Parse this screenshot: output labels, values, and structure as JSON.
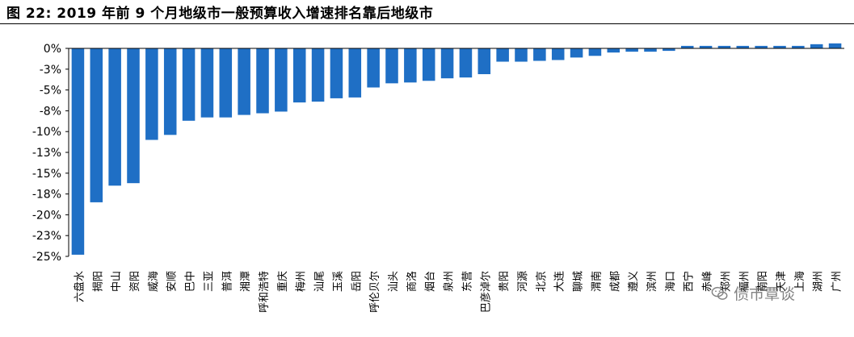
{
  "figure": {
    "title": "图 22:  2019 年前 9 个月地级市一般预算收入增速排名靠后地级市",
    "watermark": "债市覃谈",
    "watermark_icon": "wechat-icon"
  },
  "chart_data": {
    "type": "bar",
    "bar_color": "#1f6fc5",
    "ylim": [
      -25,
      0
    ],
    "yticks": [
      "0%",
      "-3%",
      "-5%",
      "-8%",
      "-10%",
      "-13%",
      "-15%",
      "-18%",
      "-20%",
      "-23%",
      "-25%"
    ],
    "xlabel": "",
    "ylabel": "",
    "grid": false,
    "categories": [
      "六盘水",
      "揭阳",
      "中山",
      "资阳",
      "威海",
      "安顺",
      "巴中",
      "三亚",
      "普洱",
      "湘潭",
      "呼和浩特",
      "重庆",
      "梅州",
      "汕尾",
      "玉溪",
      "岳阳",
      "呼伦贝尔",
      "汕头",
      "商洛",
      "烟台",
      "泉州",
      "东营",
      "巴彦淖尔",
      "贵阳",
      "河源",
      "北京",
      "大连",
      "聊城",
      "渭南",
      "成都",
      "遵义",
      "滨州",
      "海口",
      "西宁",
      "赤峰",
      "郑州",
      "福州",
      "南阳",
      "天津",
      "上海",
      "湖州",
      "广州"
    ],
    "values": [
      -24.8,
      -18.5,
      -16.5,
      -16.2,
      -11.0,
      -10.4,
      -8.7,
      -8.3,
      -8.3,
      -8.0,
      -7.8,
      -7.6,
      -6.5,
      -6.4,
      -6.0,
      -5.9,
      -4.7,
      -4.2,
      -4.1,
      -3.9,
      -3.6,
      -3.5,
      -3.1,
      -1.6,
      -1.6,
      -1.5,
      -1.4,
      -1.1,
      -0.9,
      -0.5,
      -0.4,
      -0.4,
      -0.3,
      0.3,
      0.3,
      0.3,
      0.3,
      0.3,
      0.3,
      0.3,
      0.5,
      0.6
    ]
  }
}
